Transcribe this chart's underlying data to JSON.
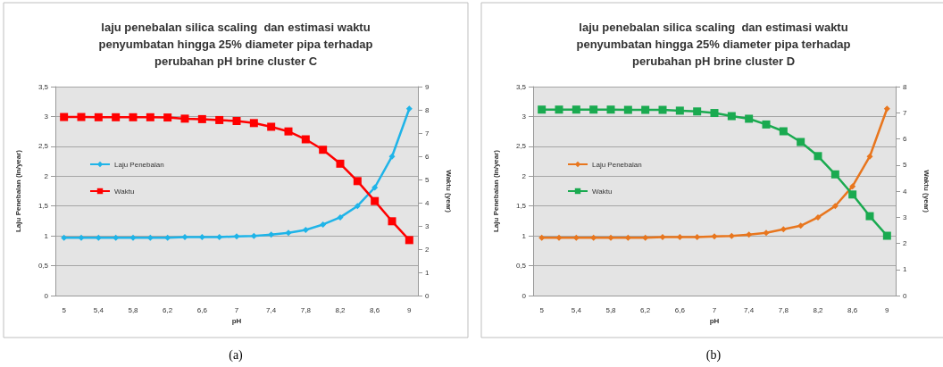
{
  "chart_data": [
    {
      "type": "line",
      "title": "laju penebalan silica scaling  dan estimasi waktu\npenyumbatan hingga 25% diameter pipa terhadap\nperubahan pH brine cluster C",
      "xlabel": "pH",
      "ylabel": "Laju Penebalan (in/year)",
      "y2label": "Waktu (year)",
      "annotations": [
        "(a)"
      ],
      "x": [
        5,
        5.2,
        5.4,
        5.6,
        5.8,
        6,
        6.2,
        6.4,
        6.6,
        6.8,
        7,
        7.2,
        7.4,
        7.6,
        7.8,
        8,
        8.2,
        8.4,
        8.6,
        8.8,
        9
      ],
      "series": [
        {
          "name": "Laju Penebalan",
          "color": "#1fb4e8",
          "marker": "diamond",
          "values": [
            0.97,
            0.97,
            0.97,
            0.97,
            0.97,
            0.97,
            0.97,
            0.98,
            0.98,
            0.98,
            0.99,
            1.0,
            1.02,
            1.05,
            1.1,
            1.19,
            1.31,
            1.5,
            1.81,
            2.33,
            3.13
          ]
        },
        {
          "name": "Waktu",
          "color": "#ff0000",
          "marker": "square",
          "axis": "y2",
          "values": [
            7.69,
            7.69,
            7.68,
            7.68,
            7.68,
            7.68,
            7.67,
            7.62,
            7.6,
            7.56,
            7.52,
            7.43,
            7.27,
            7.07,
            6.73,
            6.28,
            5.68,
            4.93,
            4.07,
            3.2,
            2.39
          ]
        }
      ],
      "xlim": [
        4.9,
        9.1
      ],
      "xticks": [
        5,
        {
          "value": 5.4,
          "label": "5,4"
        },
        {
          "value": 5.8,
          "label": "5,8"
        },
        {
          "value": 6.2,
          "label": "6,2"
        },
        {
          "value": 6.6,
          "label": "6,6"
        },
        7,
        {
          "value": 7.4,
          "label": "7,4"
        },
        {
          "value": 7.8,
          "label": "7,8"
        },
        {
          "value": 8.2,
          "label": "8,2"
        },
        {
          "value": 8.6,
          "label": "8,6"
        },
        9
      ],
      "ylim": [
        0,
        3.5
      ],
      "yticks": [
        0,
        {
          "value": 0.5,
          "label": "0,5"
        },
        1,
        {
          "value": 1.5,
          "label": "1,5"
        },
        2,
        {
          "value": 2.5,
          "label": "2,5"
        },
        3,
        {
          "value": 3.5,
          "label": "3,5"
        }
      ],
      "y2lim": [
        0,
        9
      ],
      "y2ticks": [
        0,
        1,
        2,
        3,
        4,
        5,
        6,
        7,
        8,
        9
      ],
      "grid": "y",
      "legend": "left",
      "line_style": "solid"
    },
    {
      "type": "line",
      "title": "laju penebalan silica scaling  dan estimasi waktu\npenyumbatan hingga 25% diameter pipa terhadap\nperubahan pH brine cluster D",
      "xlabel": "pH",
      "ylabel": "Laju Penebalan (in/year)",
      "y2label": "Waktu (year)",
      "annotations": [
        "(b)"
      ],
      "x": [
        5,
        5.2,
        5.4,
        5.6,
        5.8,
        6,
        6.2,
        6.4,
        6.6,
        6.8,
        7,
        7.2,
        7.4,
        7.6,
        7.8,
        8,
        8.2,
        8.4,
        8.6,
        8.8,
        9
      ],
      "series": [
        {
          "name": "Laju Penebalan",
          "color": "#e8761e",
          "marker": "diamond",
          "values": [
            0.97,
            0.97,
            0.97,
            0.97,
            0.97,
            0.97,
            0.97,
            0.98,
            0.98,
            0.98,
            0.99,
            1.0,
            1.02,
            1.05,
            1.11,
            1.17,
            1.31,
            1.5,
            1.83,
            2.33,
            3.13
          ]
        },
        {
          "name": "Waktu",
          "color": "#1aaa50",
          "marker": "square",
          "axis": "y2",
          "values": [
            7.12,
            7.12,
            7.12,
            7.12,
            7.12,
            7.11,
            7.11,
            7.11,
            7.08,
            7.05,
            6.99,
            6.87,
            6.77,
            6.55,
            6.29,
            5.88,
            5.34,
            4.64,
            3.87,
            3.04,
            2.29
          ]
        }
      ],
      "xlim": [
        4.9,
        9.1
      ],
      "xticks": [
        5,
        {
          "value": 5.4,
          "label": "5,4"
        },
        {
          "value": 5.8,
          "label": "5,8"
        },
        {
          "value": 6.2,
          "label": "6,2"
        },
        {
          "value": 6.6,
          "label": "6,6"
        },
        7,
        {
          "value": 7.4,
          "label": "7,4"
        },
        {
          "value": 7.8,
          "label": "7,8"
        },
        {
          "value": 8.2,
          "label": "8,2"
        },
        {
          "value": 8.6,
          "label": "8,6"
        },
        9
      ],
      "ylim": [
        0,
        3.5
      ],
      "yticks": [
        0,
        {
          "value": 0.5,
          "label": "0,5"
        },
        1,
        {
          "value": 1.5,
          "label": "1,5"
        },
        2,
        {
          "value": 2.5,
          "label": "2,5"
        },
        3,
        {
          "value": 3.5,
          "label": "3,5"
        }
      ],
      "y2lim": [
        0,
        8
      ],
      "y2ticks": [
        0,
        1,
        2,
        3,
        4,
        5,
        6,
        7,
        8
      ],
      "grid": "y",
      "legend": "left",
      "line_style": "solid"
    }
  ]
}
